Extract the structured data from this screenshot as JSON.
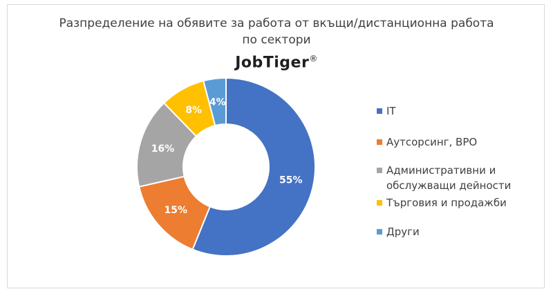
{
  "title_line1": "Разпределение на обявите за работа от вкъщи/дистанционна работа",
  "title_line2": "по сектори",
  "logo_text": "JobTiger",
  "logo_mark": "®",
  "chart_data": {
    "type": "pie",
    "donut": true,
    "labels": [
      "IT",
      "Аутсорсинг, BPO",
      "Административни и обслужващи дейности",
      "Търговия и продажби",
      "Други"
    ],
    "values": [
      55,
      15,
      16,
      8,
      4
    ],
    "value_labels": [
      "55%",
      "15%",
      "16%",
      "8%",
      "4%"
    ],
    "colors": [
      "#4472C4",
      "#ED7D31",
      "#A5A5A5",
      "#FFC000",
      "#5B9BD5"
    ],
    "legend_position": "right"
  }
}
